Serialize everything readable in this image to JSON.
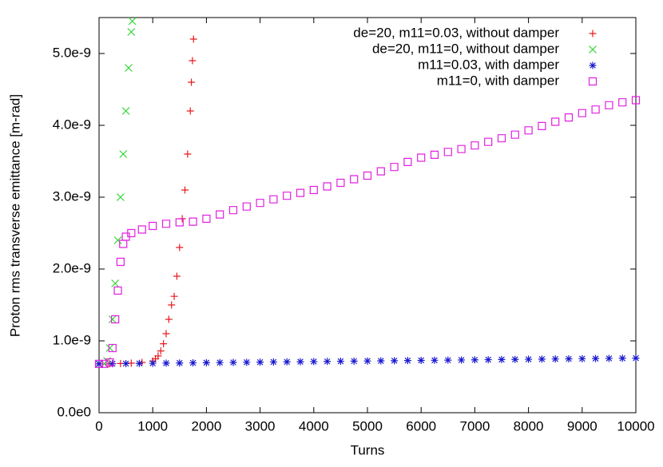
{
  "chart_data": {
    "type": "scatter",
    "xlabel": "Turns",
    "ylabel": "Proton rms transverse emittance [m-rad]",
    "xlim": [
      0,
      10000
    ],
    "xticks": [
      0,
      1000,
      2000,
      3000,
      4000,
      5000,
      6000,
      7000,
      8000,
      9000,
      10000
    ],
    "ylim": [
      0,
      5.5e-09
    ],
    "yticks": [
      {
        "value": 0,
        "label": "0.0e0"
      },
      {
        "value": 1e-09,
        "label": "1.0e-9"
      },
      {
        "value": 2e-09,
        "label": "2.0e-9"
      },
      {
        "value": 3e-09,
        "label": "3.0e-9"
      },
      {
        "value": 4e-09,
        "label": "4.0e-9"
      },
      {
        "value": 5e-09,
        "label": "5.0e-9"
      }
    ],
    "legend": "top-right",
    "series": [
      {
        "name": "de=20, m11=0.03, without damper",
        "color": "#e8191e",
        "marker": "plus",
        "x": [
          0,
          200,
          400,
          600,
          800,
          1000,
          1050,
          1100,
          1150,
          1200,
          1250,
          1300,
          1350,
          1400,
          1450,
          1500,
          1550,
          1600,
          1650,
          1700,
          1720,
          1740,
          1760
        ],
        "values": [
          6.8e-10,
          6.8e-10,
          6.85e-10,
          6.9e-10,
          7e-10,
          7.2e-10,
          7.5e-10,
          7.9e-10,
          8.6e-10,
          9.6e-10,
          1.1e-09,
          1.3e-09,
          1.5e-09,
          1.62e-09,
          1.9e-09,
          2.3e-09,
          2.7e-09,
          3.1e-09,
          3.6e-09,
          4.2e-09,
          4.6e-09,
          4.9e-09,
          5.2e-09
        ]
      },
      {
        "name": "de=20, m11=0, without damper",
        "color": "#2fd52f",
        "marker": "cross",
        "x": [
          0,
          100,
          150,
          200,
          250,
          300,
          350,
          400,
          450,
          500,
          550,
          600,
          620
        ],
        "values": [
          6.8e-10,
          6.8e-10,
          7.2e-10,
          9e-10,
          1.3e-09,
          1.8e-09,
          2.4e-09,
          3e-09,
          3.6e-09,
          4.2e-09,
          4.8e-09,
          5.3e-09,
          5.45e-09
        ]
      },
      {
        "name": "m11=0.03, with damper",
        "color": "#1a1ad0",
        "marker": "star",
        "x": [
          0,
          250,
          500,
          750,
          1000,
          1250,
          1500,
          1750,
          2000,
          2250,
          2500,
          2750,
          3000,
          3250,
          3500,
          3750,
          4000,
          4250,
          4500,
          4750,
          5000,
          5250,
          5500,
          5750,
          6000,
          6250,
          6500,
          6750,
          7000,
          7250,
          7500,
          7750,
          8000,
          8250,
          8500,
          8750,
          9000,
          9250,
          9500,
          9750,
          10000
        ],
        "values": [
          6.8e-10,
          6.82e-10,
          6.84e-10,
          6.86e-10,
          6.88e-10,
          6.9e-10,
          6.92e-10,
          6.94e-10,
          6.96e-10,
          6.98e-10,
          7e-10,
          7.02e-10,
          7.04e-10,
          7.06e-10,
          7.08e-10,
          7.1e-10,
          7.12e-10,
          7.14e-10,
          7.16e-10,
          7.18e-10,
          7.2e-10,
          7.22e-10,
          7.24e-10,
          7.26e-10,
          7.28e-10,
          7.3e-10,
          7.32e-10,
          7.34e-10,
          7.36e-10,
          7.38e-10,
          7.4e-10,
          7.42e-10,
          7.44e-10,
          7.46e-10,
          7.48e-10,
          7.5e-10,
          7.52e-10,
          7.54e-10,
          7.56e-10,
          7.58e-10,
          7.6e-10
        ]
      },
      {
        "name": "m11=0, with damper",
        "color": "#e020e0",
        "marker": "square",
        "x": [
          0,
          100,
          200,
          250,
          300,
          350,
          400,
          450,
          500,
          600,
          800,
          1000,
          1250,
          1500,
          1750,
          2000,
          2250,
          2500,
          2750,
          3000,
          3250,
          3500,
          3750,
          4000,
          4250,
          4500,
          4750,
          5000,
          5250,
          5500,
          5750,
          6000,
          6250,
          6500,
          6750,
          7000,
          7250,
          7500,
          7750,
          8000,
          8250,
          8500,
          8750,
          9000,
          9250,
          9500,
          9750,
          10000
        ],
        "values": [
          6.8e-10,
          6.8e-10,
          7e-10,
          9e-10,
          1.3e-09,
          1.7e-09,
          2.1e-09,
          2.35e-09,
          2.45e-09,
          2.5e-09,
          2.55e-09,
          2.6e-09,
          2.63e-09,
          2.65e-09,
          2.66e-09,
          2.7e-09,
          2.76e-09,
          2.82e-09,
          2.87e-09,
          2.92e-09,
          2.97e-09,
          3.02e-09,
          3.06e-09,
          3.1e-09,
          3.15e-09,
          3.2e-09,
          3.25e-09,
          3.3e-09,
          3.36e-09,
          3.42e-09,
          3.49e-09,
          3.55e-09,
          3.59e-09,
          3.63e-09,
          3.67e-09,
          3.72e-09,
          3.77e-09,
          3.82e-09,
          3.87e-09,
          3.93e-09,
          3.99e-09,
          4.05e-09,
          4.11e-09,
          4.17e-09,
          4.22e-09,
          4.28e-09,
          4.32e-09,
          4.35e-09
        ]
      }
    ]
  }
}
